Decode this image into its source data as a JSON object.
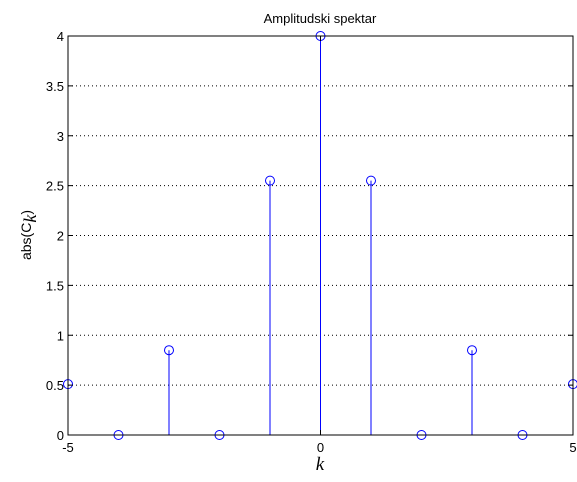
{
  "chart_data": {
    "type": "stem",
    "title": "Amplitudski spektar",
    "xlabel": "k",
    "ylabel_main": "abs(C",
    "ylabel_sub": "k",
    "ylabel_close": ")",
    "xlim": [
      -5,
      5
    ],
    "ylim": [
      0,
      4
    ],
    "xticks": [
      "-5",
      "0",
      "5"
    ],
    "yticks": [
      "0",
      "0.5",
      "1",
      "1.5",
      "2",
      "2.5",
      "3",
      "3.5",
      "4"
    ],
    "grid": "dotted",
    "series": [
      {
        "x": [
          -5,
          -4,
          -3,
          -2,
          -1,
          0,
          1,
          2,
          3,
          4,
          5
        ],
        "y": [
          0.51,
          0,
          0.85,
          0,
          2.55,
          4,
          2.55,
          0,
          0.85,
          0,
          0.51
        ]
      }
    ]
  },
  "colors": {
    "stem": "#0000ff",
    "axes": "#000000",
    "grid": "#000000",
    "background": "#ffffff"
  }
}
